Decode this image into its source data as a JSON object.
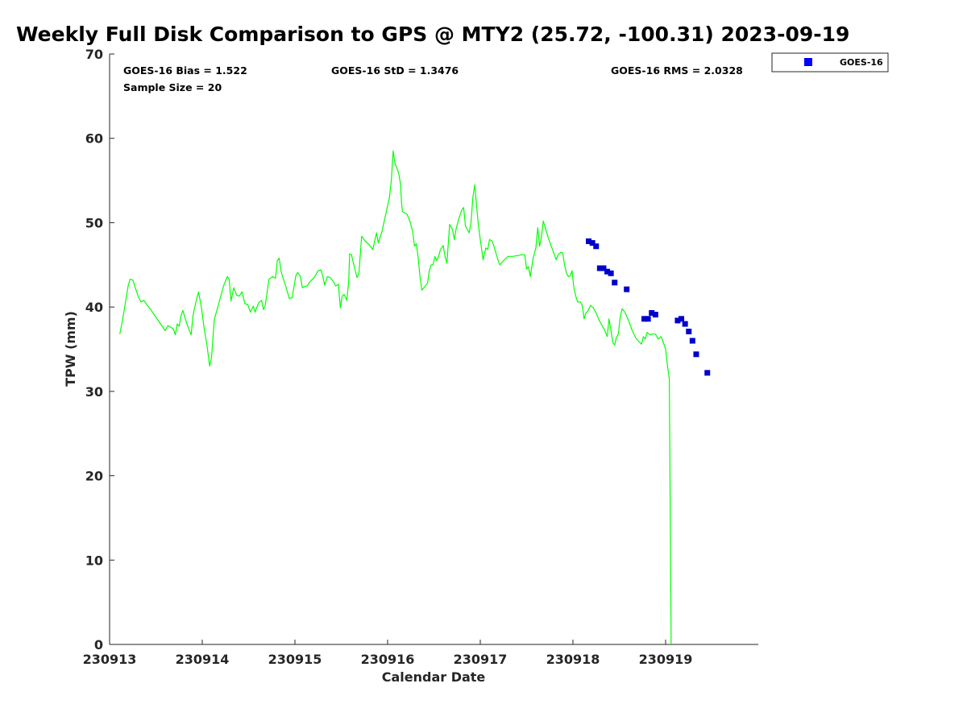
{
  "title": "Weekly Full Disk Comparison to GPS @ MTY2 (25.72, -100.31) 2023-09-19",
  "stats": {
    "bias": "GOES-16 Bias = 1.522",
    "std": "GOES-16 StD = 1.3476",
    "rms": "GOES-16 RMS = 2.0328",
    "sample": "Sample Size = 20"
  },
  "legend": {
    "label": "GOES-16",
    "marker_color": "#0000ff"
  },
  "colors": {
    "gps_line": "#00ff00",
    "goes_marker": "#0000cc",
    "axis": "#262626"
  },
  "chart_data": {
    "type": "line",
    "title": "Weekly Full Disk Comparison to GPS @ MTY2 (25.72, -100.31) 2023-09-19",
    "xlabel": "Calendar Date",
    "ylabel": "TPW (mm)",
    "x_tick_labels": [
      "230913",
      "230914",
      "230915",
      "230916",
      "230917",
      "230918",
      "230919"
    ],
    "y_ticks": [
      0,
      10,
      20,
      30,
      40,
      50,
      60,
      70
    ],
    "xlim": [
      0,
      7.0
    ],
    "ylim": [
      0,
      70
    ],
    "grid": false,
    "legend_position": "top-right",
    "series": [
      {
        "kind": "line",
        "points": [
          [
            0.11,
            36.8
          ],
          [
            0.14,
            38.5
          ],
          [
            0.17,
            40.5
          ],
          [
            0.2,
            42.5
          ],
          [
            0.22,
            43.3
          ],
          [
            0.25,
            43.2
          ],
          [
            0.28,
            42.2
          ],
          [
            0.31,
            41.2
          ],
          [
            0.34,
            40.6
          ],
          [
            0.37,
            40.8
          ],
          [
            0.4,
            40.3
          ],
          [
            0.45,
            39.6
          ],
          [
            0.5,
            38.8
          ],
          [
            0.55,
            38.0
          ],
          [
            0.6,
            37.2
          ],
          [
            0.63,
            37.8
          ],
          [
            0.66,
            37.6
          ],
          [
            0.69,
            37.4
          ],
          [
            0.71,
            36.7
          ],
          [
            0.73,
            38.0
          ],
          [
            0.75,
            37.7
          ],
          [
            0.77,
            39.0
          ],
          [
            0.79,
            39.6
          ],
          [
            0.82,
            38.5
          ],
          [
            0.85,
            37.5
          ],
          [
            0.88,
            36.7
          ],
          [
            0.9,
            39.0
          ],
          [
            0.93,
            40.5
          ],
          [
            0.96,
            41.8
          ],
          [
            0.99,
            40.0
          ],
          [
            1.02,
            37.5
          ],
          [
            1.05,
            35.5
          ],
          [
            1.08,
            33.0
          ],
          [
            1.1,
            34.0
          ],
          [
            1.13,
            38.5
          ],
          [
            1.18,
            40.5
          ],
          [
            1.23,
            42.5
          ],
          [
            1.27,
            43.6
          ],
          [
            1.29,
            43.3
          ],
          [
            1.31,
            40.7
          ],
          [
            1.34,
            42.3
          ],
          [
            1.37,
            41.4
          ],
          [
            1.4,
            41.3
          ],
          [
            1.43,
            41.8
          ],
          [
            1.46,
            40.4
          ],
          [
            1.49,
            40.3
          ],
          [
            1.52,
            39.4
          ],
          [
            1.55,
            40.1
          ],
          [
            1.57,
            39.4
          ],
          [
            1.59,
            40.0
          ],
          [
            1.61,
            40.5
          ],
          [
            1.64,
            40.8
          ],
          [
            1.66,
            39.7
          ],
          [
            1.68,
            40.2
          ],
          [
            1.72,
            43.3
          ],
          [
            1.76,
            43.6
          ],
          [
            1.79,
            43.4
          ],
          [
            1.81,
            45.5
          ],
          [
            1.83,
            45.8
          ],
          [
            1.85,
            44.2
          ],
          [
            1.9,
            42.5
          ],
          [
            1.94,
            41.0
          ],
          [
            1.97,
            41.1
          ],
          [
            2.01,
            43.7
          ],
          [
            2.03,
            44.1
          ],
          [
            2.06,
            43.6
          ],
          [
            2.08,
            42.3
          ],
          [
            2.1,
            42.4
          ],
          [
            2.13,
            42.5
          ],
          [
            2.17,
            43.1
          ],
          [
            2.21,
            43.5
          ],
          [
            2.25,
            44.3
          ],
          [
            2.28,
            44.4
          ],
          [
            2.3,
            43.7
          ],
          [
            2.32,
            42.6
          ],
          [
            2.35,
            43.6
          ],
          [
            2.38,
            43.5
          ],
          [
            2.41,
            43.1
          ],
          [
            2.44,
            42.5
          ],
          [
            2.47,
            42.7
          ],
          [
            2.48,
            41.2
          ],
          [
            2.49,
            39.9
          ],
          [
            2.51,
            41.3
          ],
          [
            2.53,
            41.5
          ],
          [
            2.56,
            40.8
          ],
          [
            2.58,
            43.0
          ],
          [
            2.59,
            46.3
          ],
          [
            2.61,
            46.2
          ],
          [
            2.64,
            44.8
          ],
          [
            2.67,
            43.5
          ],
          [
            2.69,
            44.0
          ],
          [
            2.72,
            48.4
          ],
          [
            2.76,
            47.8
          ],
          [
            2.8,
            47.4
          ],
          [
            2.84,
            46.8
          ],
          [
            2.88,
            48.8
          ],
          [
            2.9,
            47.6
          ],
          [
            2.94,
            49.0
          ],
          [
            2.98,
            51.0
          ],
          [
            3.02,
            53.0
          ],
          [
            3.04,
            55.0
          ],
          [
            3.06,
            58.5
          ],
          [
            3.08,
            57.0
          ],
          [
            3.1,
            56.5
          ],
          [
            3.12,
            55.8
          ],
          [
            3.14,
            54.6
          ],
          [
            3.15,
            52.3
          ],
          [
            3.16,
            51.3
          ],
          [
            3.18,
            51.2
          ],
          [
            3.21,
            51.0
          ],
          [
            3.24,
            50.2
          ],
          [
            3.27,
            49.0
          ],
          [
            3.29,
            47.2
          ],
          [
            3.31,
            47.5
          ],
          [
            3.33,
            45.8
          ],
          [
            3.35,
            43.5
          ],
          [
            3.37,
            42.0
          ],
          [
            3.4,
            42.4
          ],
          [
            3.43,
            42.8
          ],
          [
            3.45,
            44.3
          ],
          [
            3.47,
            45.0
          ],
          [
            3.49,
            45.0
          ],
          [
            3.51,
            46.0
          ],
          [
            3.53,
            45.5
          ],
          [
            3.55,
            46.0
          ],
          [
            3.57,
            46.8
          ],
          [
            3.6,
            47.3
          ],
          [
            3.62,
            46.0
          ],
          [
            3.64,
            45.2
          ],
          [
            3.67,
            49.8
          ],
          [
            3.7,
            49.2
          ],
          [
            3.72,
            48.0
          ],
          [
            3.74,
            49.3
          ],
          [
            3.77,
            50.5
          ],
          [
            3.8,
            51.5
          ],
          [
            3.82,
            51.8
          ],
          [
            3.84,
            49.6
          ],
          [
            3.88,
            48.8
          ],
          [
            3.9,
            50.0
          ],
          [
            3.92,
            53.0
          ],
          [
            3.94,
            54.5
          ],
          [
            3.96,
            52.0
          ],
          [
            3.98,
            49.7
          ],
          [
            4.0,
            48.0
          ],
          [
            4.03,
            45.6
          ],
          [
            4.06,
            47.0
          ],
          [
            4.08,
            46.8
          ],
          [
            4.1,
            48.0
          ],
          [
            4.13,
            47.8
          ],
          [
            4.15,
            47.1
          ],
          [
            4.18,
            46.0
          ],
          [
            4.21,
            45.0
          ],
          [
            4.25,
            45.5
          ],
          [
            4.3,
            46.0
          ],
          [
            4.35,
            46.0
          ],
          [
            4.4,
            46.1
          ],
          [
            4.45,
            46.2
          ],
          [
            4.48,
            46.2
          ],
          [
            4.5,
            44.5
          ],
          [
            4.52,
            44.8
          ],
          [
            4.54,
            43.6
          ],
          [
            4.57,
            45.8
          ],
          [
            4.6,
            47.0
          ],
          [
            4.62,
            49.4
          ],
          [
            4.64,
            47.2
          ],
          [
            4.66,
            48.3
          ],
          [
            4.68,
            50.2
          ],
          [
            4.71,
            49.1
          ],
          [
            4.74,
            48.0
          ],
          [
            4.78,
            46.8
          ],
          [
            4.82,
            45.6
          ],
          [
            4.84,
            46.2
          ],
          [
            4.87,
            46.5
          ],
          [
            4.89,
            46.4
          ],
          [
            4.91,
            45.0
          ],
          [
            4.93,
            44.0
          ],
          [
            4.95,
            43.6
          ],
          [
            4.97,
            43.7
          ],
          [
            4.99,
            44.3
          ],
          [
            5.01,
            42.3
          ],
          [
            5.03,
            41.3
          ],
          [
            5.05,
            40.6
          ],
          [
            5.08,
            40.6
          ],
          [
            5.1,
            40.2
          ],
          [
            5.12,
            38.6
          ],
          [
            5.14,
            39.3
          ],
          [
            5.16,
            39.5
          ],
          [
            5.19,
            40.2
          ],
          [
            5.22,
            39.9
          ],
          [
            5.25,
            39.3
          ],
          [
            5.28,
            38.5
          ],
          [
            5.31,
            37.9
          ],
          [
            5.34,
            37.3
          ],
          [
            5.37,
            36.5
          ],
          [
            5.39,
            38.6
          ],
          [
            5.41,
            37.2
          ],
          [
            5.43,
            35.8
          ],
          [
            5.45,
            35.5
          ],
          [
            5.47,
            36.4
          ],
          [
            5.49,
            36.8
          ],
          [
            5.51,
            38.8
          ],
          [
            5.53,
            39.8
          ],
          [
            5.56,
            39.4
          ],
          [
            5.6,
            38.4
          ],
          [
            5.64,
            37.2
          ],
          [
            5.68,
            36.3
          ],
          [
            5.72,
            35.8
          ],
          [
            5.74,
            35.6
          ],
          [
            5.76,
            36.5
          ],
          [
            5.78,
            36.2
          ],
          [
            5.8,
            37.0
          ],
          [
            5.83,
            36.7
          ],
          [
            5.86,
            36.8
          ],
          [
            5.89,
            36.8
          ],
          [
            5.92,
            36.2
          ],
          [
            5.95,
            36.5
          ],
          [
            5.97,
            36.0
          ],
          [
            6.0,
            35.0
          ],
          [
            6.02,
            33.0
          ],
          [
            6.04,
            31.5
          ],
          [
            6.05,
            16.0
          ],
          [
            6.06,
            0.0
          ]
        ]
      },
      {
        "name": "GOES-16",
        "kind": "scatter",
        "points": [
          [
            5.17,
            47.8
          ],
          [
            5.21,
            47.6
          ],
          [
            5.25,
            47.2
          ],
          [
            5.29,
            44.6
          ],
          [
            5.33,
            44.6
          ],
          [
            5.37,
            44.2
          ],
          [
            5.41,
            44.0
          ],
          [
            5.45,
            42.9
          ],
          [
            5.58,
            42.1
          ],
          [
            5.77,
            38.6
          ],
          [
            5.81,
            38.6
          ],
          [
            5.85,
            39.3
          ],
          [
            5.89,
            39.1
          ],
          [
            6.13,
            38.4
          ],
          [
            6.17,
            38.6
          ],
          [
            6.21,
            38.0
          ],
          [
            6.25,
            37.1
          ],
          [
            6.29,
            36.0
          ],
          [
            6.33,
            34.4
          ],
          [
            6.45,
            32.2
          ]
        ]
      }
    ]
  }
}
